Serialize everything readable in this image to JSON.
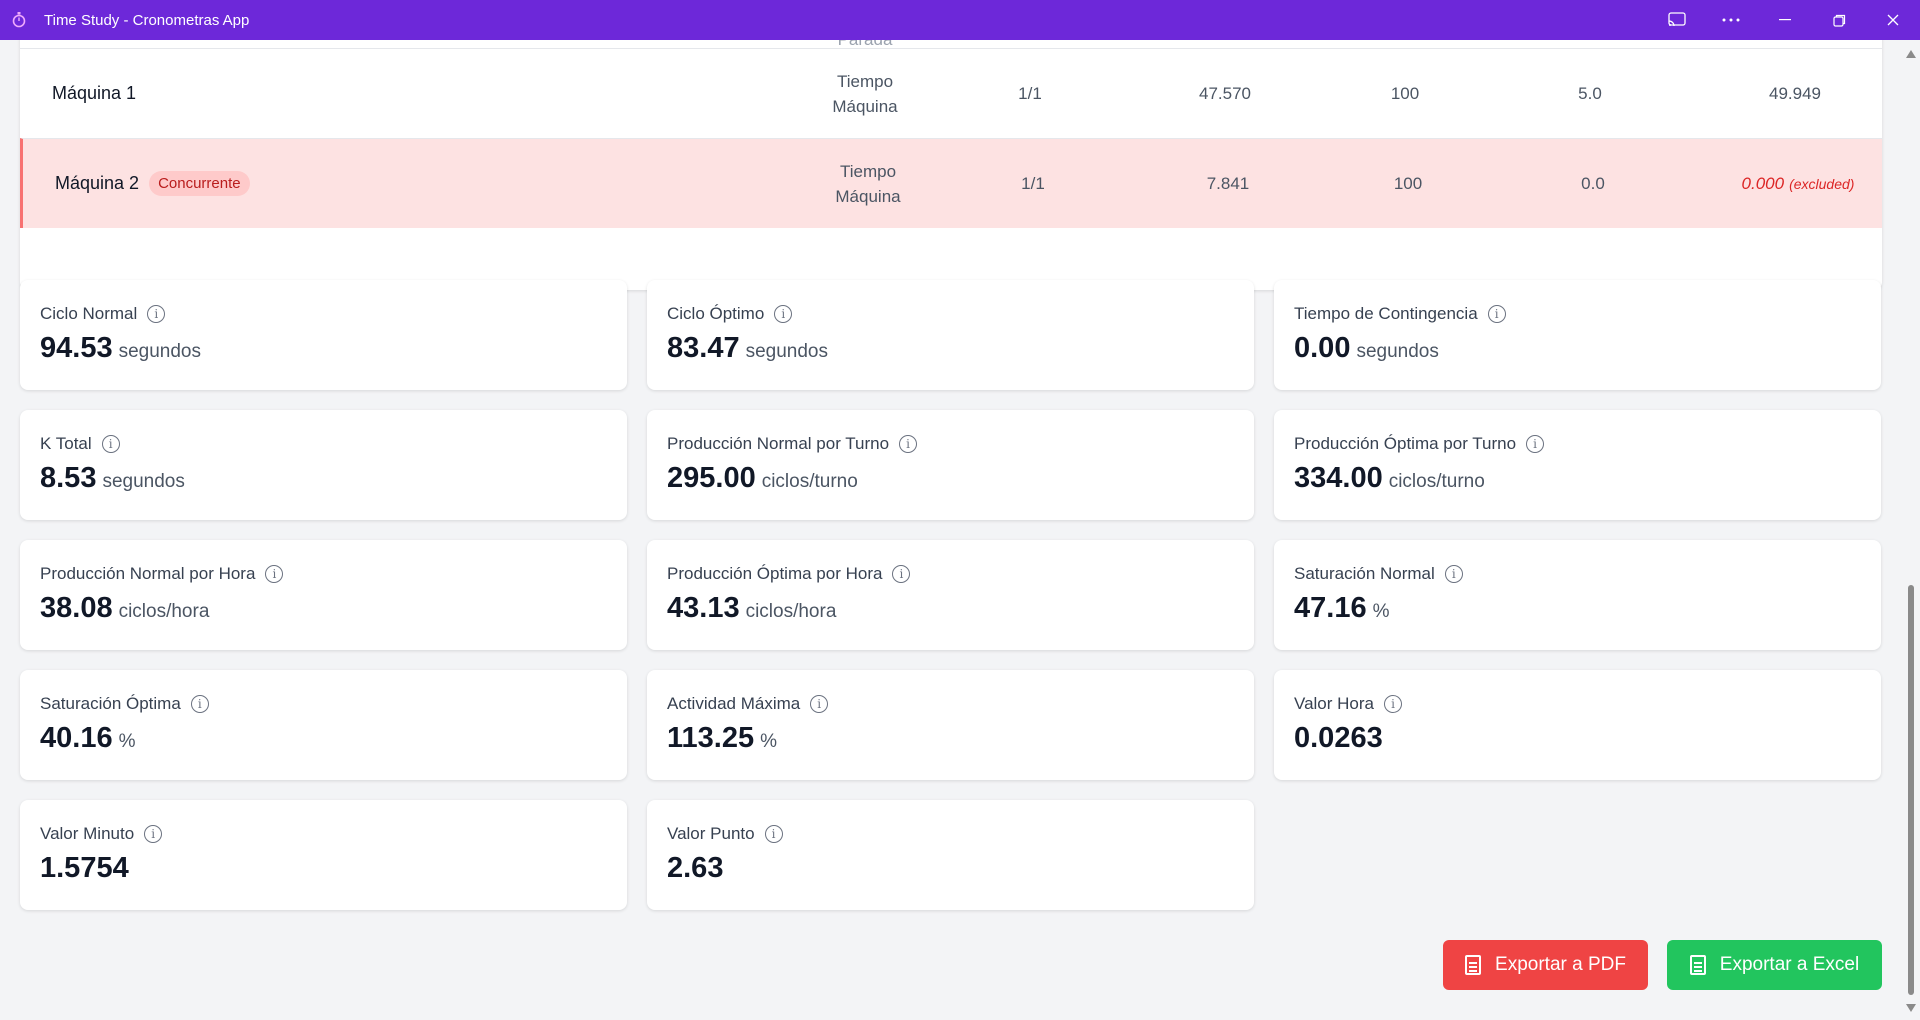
{
  "window": {
    "title": "Time Study - Cronometras App"
  },
  "table": {
    "partial_row": {
      "type_fragment": "Parada"
    },
    "rows": [
      {
        "name": "Máquina 1",
        "badge": "",
        "type_line1": "Tiempo",
        "type_line2": "Máquina",
        "fraction": "1/1",
        "observed": "47.570",
        "activity": "100",
        "supplement": "5.0",
        "total": "49.949",
        "excluded_tag": ""
      },
      {
        "name": "Máquina 2",
        "badge": "Concurrente",
        "type_line1": "Tiempo",
        "type_line2": "Máquina",
        "fraction": "1/1",
        "observed": "7.841",
        "activity": "100",
        "supplement": "0.0",
        "total": "0.000",
        "excluded_tag": "(excluded)"
      }
    ]
  },
  "metrics": [
    {
      "label": "Ciclo Normal",
      "value": "94.53",
      "unit": "segundos"
    },
    {
      "label": "Ciclo Óptimo",
      "value": "83.47",
      "unit": "segundos"
    },
    {
      "label": "Tiempo de Contingencia",
      "value": "0.00",
      "unit": "segundos"
    },
    {
      "label": "K Total",
      "value": "8.53",
      "unit": "segundos"
    },
    {
      "label": "Producción Normal por Turno",
      "value": "295.00",
      "unit": "ciclos/turno"
    },
    {
      "label": "Producción Óptima por Turno",
      "value": "334.00",
      "unit": "ciclos/turno"
    },
    {
      "label": "Producción Normal por Hora",
      "value": "38.08",
      "unit": "ciclos/hora"
    },
    {
      "label": "Producción Óptima por Hora",
      "value": "43.13",
      "unit": "ciclos/hora"
    },
    {
      "label": "Saturación Normal",
      "value": "47.16",
      "unit": "%"
    },
    {
      "label": "Saturación Óptima",
      "value": "40.16",
      "unit": "%"
    },
    {
      "label": "Actividad Máxima",
      "value": "113.25",
      "unit": "%"
    },
    {
      "label": "Valor Hora",
      "value": "0.0263",
      "unit": ""
    },
    {
      "label": "Valor Minuto",
      "value": "1.5754",
      "unit": ""
    },
    {
      "label": "Valor Punto",
      "value": "2.63",
      "unit": ""
    }
  ],
  "actions": {
    "export_pdf": "Exportar a PDF",
    "export_excel": "Exportar a Excel"
  },
  "colors": {
    "titlebar": "#6d28d9",
    "excluded_row": "#fde2e2",
    "badge_text": "#b91c1c",
    "pdf_button": "#ef4444",
    "excel_button": "#22c55e"
  },
  "icons": {
    "app": "stopwatch-icon",
    "info": "info-icon",
    "export": "document-icon"
  }
}
